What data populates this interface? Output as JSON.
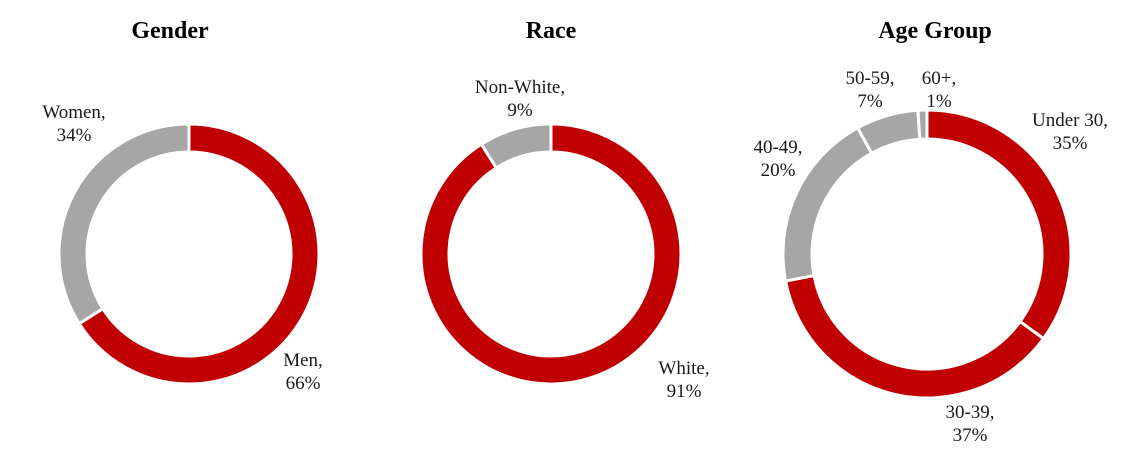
{
  "colors": {
    "red": "#c00000",
    "gray": "#a6a6a6",
    "separator": "#ffffff"
  },
  "chart_data": [
    {
      "type": "pie",
      "title": "Gender",
      "slices": [
        {
          "name": "Men",
          "value": 66,
          "label_name": "Men,",
          "label_value": "66%",
          "color": "red"
        },
        {
          "name": "Women",
          "value": 34,
          "label_name": "Women,",
          "label_value": "34%",
          "color": "gray"
        }
      ]
    },
    {
      "type": "pie",
      "title": "Race",
      "slices": [
        {
          "name": "White",
          "value": 91,
          "label_name": "White,",
          "label_value": "91%",
          "color": "red"
        },
        {
          "name": "Non-White",
          "value": 9,
          "label_name": "Non-White,",
          "label_value": "9%",
          "color": "gray"
        }
      ]
    },
    {
      "type": "pie",
      "title": "Age Group",
      "slices": [
        {
          "name": "Under 30",
          "value": 35,
          "label_name": "Under 30,",
          "label_value": "35%",
          "color": "red"
        },
        {
          "name": "30-39",
          "value": 37,
          "label_name": "30-39,",
          "label_value": "37%",
          "color": "red"
        },
        {
          "name": "40-49",
          "value": 20,
          "label_name": "40-49,",
          "label_value": "20%",
          "color": "gray"
        },
        {
          "name": "50-59",
          "value": 7,
          "label_name": "50-59,",
          "label_value": "7%",
          "color": "gray"
        },
        {
          "name": "60+",
          "value": 1,
          "label_name": "60+,",
          "label_value": "1%",
          "color": "gray"
        }
      ]
    }
  ]
}
